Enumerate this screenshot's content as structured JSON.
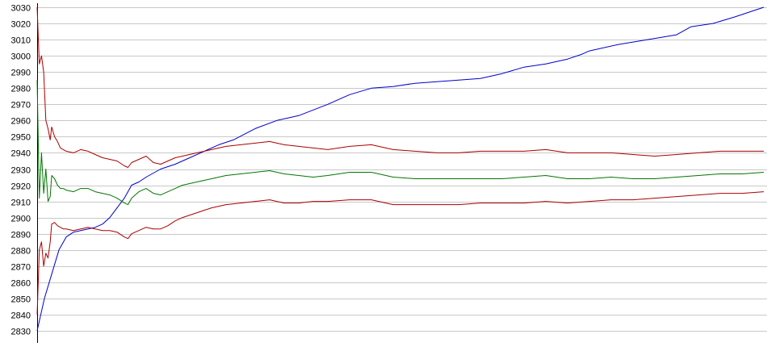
{
  "chart_data": {
    "type": "line",
    "title": "",
    "xlabel": "",
    "ylabel": "",
    "ylim": [
      2830,
      3030
    ],
    "yticks": [
      2830,
      2840,
      2850,
      2860,
      2870,
      2880,
      2890,
      2900,
      2910,
      2920,
      2930,
      2940,
      2950,
      2960,
      2970,
      2980,
      2990,
      3000,
      3010,
      3020,
      3030
    ],
    "grid": true,
    "legend": "none",
    "x_range": [
      0,
      100
    ],
    "series": [
      {
        "color": "#0000cc",
        "x": [
          0,
          1,
          2,
          3,
          4,
          5,
          6,
          7,
          8,
          9,
          10,
          11,
          12,
          13,
          14,
          15,
          17,
          19,
          21,
          23,
          25,
          27,
          30,
          33,
          36,
          40,
          43,
          46,
          49,
          52,
          55,
          58,
          61,
          64,
          67,
          70,
          73,
          75,
          76,
          80,
          84,
          88,
          90,
          93,
          96,
          100
        ],
        "y": [
          2830,
          2850,
          2865,
          2880,
          2888,
          2891,
          2892,
          2893,
          2894,
          2896,
          2900,
          2906,
          2912,
          2920,
          2922,
          2925,
          2930,
          2933,
          2937,
          2941,
          2945,
          2948,
          2955,
          2960,
          2963,
          2970,
          2976,
          2980,
          2981,
          2983,
          2984,
          2985,
          2986,
          2989,
          2993,
          2995,
          2998,
          3001,
          3003,
          3007,
          3010,
          3013,
          3018,
          3020,
          3024,
          3030
        ]
      },
      {
        "color": "#aa0000",
        "x": [
          0,
          0.3,
          0.6,
          0.9,
          1.2,
          1.5,
          1.8,
          2,
          2.4,
          2.8,
          3.2,
          3.6,
          4,
          5,
          6,
          7,
          8,
          9,
          10,
          11,
          12,
          12.5,
          13,
          14,
          15,
          16,
          17,
          18,
          19,
          20,
          22,
          24,
          26,
          28,
          30,
          32,
          34,
          36,
          38,
          40,
          43,
          46,
          49,
          52,
          55,
          58,
          61,
          64,
          67,
          70,
          73,
          76,
          79,
          82,
          85,
          88,
          91,
          94,
          97,
          100
        ],
        "y": [
          3030,
          2995,
          3000,
          2990,
          2960,
          2955,
          2948,
          2956,
          2950,
          2947,
          2943,
          2942,
          2941,
          2940,
          2942,
          2941,
          2939,
          2937,
          2936,
          2935,
          2932,
          2931,
          2934,
          2936,
          2938,
          2934,
          2933,
          2935,
          2937,
          2938,
          2940,
          2942,
          2944,
          2945,
          2946,
          2947,
          2945,
          2944,
          2943,
          2942,
          2944,
          2945,
          2942,
          2941,
          2940,
          2940,
          2941,
          2941,
          2941,
          2942,
          2940,
          2940,
          2940,
          2939,
          2938,
          2939,
          2940,
          2941,
          2941,
          2941
        ]
      },
      {
        "color": "#007700",
        "x": [
          0,
          0.3,
          0.6,
          0.9,
          1.2,
          1.5,
          1.8,
          2,
          2.4,
          2.8,
          3.2,
          3.6,
          4,
          5,
          6,
          7,
          8,
          9,
          10,
          11,
          12,
          12.5,
          13,
          14,
          15,
          16,
          17,
          18,
          19,
          20,
          22,
          24,
          26,
          28,
          30,
          32,
          34,
          36,
          38,
          40,
          43,
          46,
          49,
          52,
          55,
          58,
          61,
          64,
          67,
          70,
          73,
          76,
          79,
          82,
          85,
          88,
          91,
          94,
          97,
          100
        ],
        "y": [
          2985,
          2912,
          2940,
          2915,
          2930,
          2910,
          2913,
          2926,
          2924,
          2920,
          2918,
          2918,
          2917,
          2916,
          2918,
          2918,
          2916,
          2915,
          2914,
          2912,
          2909,
          2908,
          2912,
          2916,
          2918,
          2915,
          2914,
          2916,
          2918,
          2920,
          2922,
          2924,
          2926,
          2927,
          2928,
          2929,
          2927,
          2926,
          2925,
          2926,
          2928,
          2928,
          2925,
          2924,
          2924,
          2924,
          2924,
          2924,
          2925,
          2926,
          2924,
          2924,
          2925,
          2924,
          2924,
          2925,
          2926,
          2927,
          2927,
          2928
        ]
      },
      {
        "color": "#aa0000",
        "x": [
          0,
          0.3,
          0.6,
          0.9,
          1.2,
          1.5,
          1.8,
          2,
          2.4,
          2.8,
          3.2,
          3.6,
          4,
          5,
          6,
          7,
          8,
          9,
          10,
          11,
          12,
          12.5,
          13,
          14,
          15,
          16,
          17,
          18,
          19,
          20,
          22,
          24,
          26,
          28,
          30,
          32,
          34,
          36,
          38,
          40,
          43,
          46,
          49,
          52,
          55,
          58,
          61,
          64,
          67,
          70,
          73,
          76,
          79,
          82,
          85,
          88,
          91,
          94,
          97,
          100
        ],
        "y": [
          2840,
          2880,
          2885,
          2870,
          2878,
          2875,
          2885,
          2896,
          2897,
          2895,
          2894,
          2893,
          2893,
          2892,
          2893,
          2894,
          2893,
          2892,
          2892,
          2891,
          2888,
          2887,
          2890,
          2892,
          2894,
          2893,
          2893,
          2895,
          2898,
          2900,
          2903,
          2906,
          2908,
          2909,
          2910,
          2911,
          2909,
          2909,
          2910,
          2910,
          2911,
          2911,
          2908,
          2908,
          2908,
          2908,
          2909,
          2909,
          2909,
          2910,
          2909,
          2910,
          2911,
          2911,
          2912,
          2913,
          2914,
          2915,
          2915,
          2916
        ]
      }
    ]
  }
}
